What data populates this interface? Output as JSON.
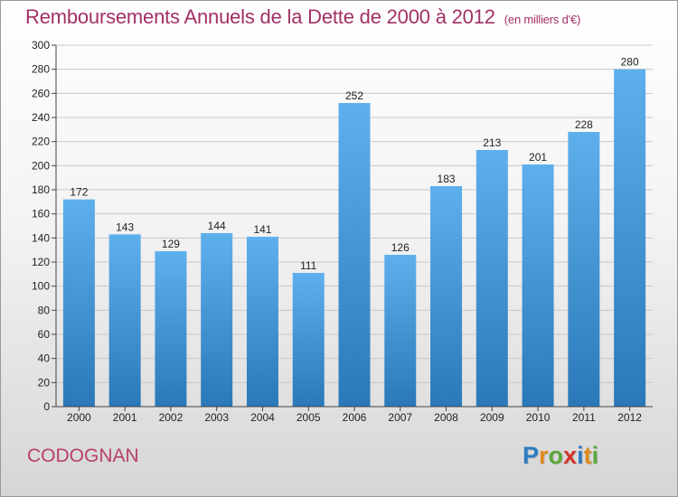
{
  "title": "Remboursements Annuels de la Dette de 2000 à 2012",
  "unit_note": "(en milliers d'€)",
  "commune": "CODOGNAN",
  "logo": {
    "letters": [
      "P",
      "r",
      "o",
      "x",
      "i",
      "t",
      "i"
    ],
    "colors": [
      "#2e7cc2",
      "#e08a1e",
      "#5aa83a",
      "#d4342a",
      "#2e7cc2",
      "#e08a1e",
      "#5aa83a"
    ]
  },
  "colors": {
    "bar_top": "#5eb0ec",
    "bar_bottom": "#2a78b8",
    "title": "#a23066"
  },
  "chart_data": {
    "type": "bar",
    "title": "Remboursements Annuels de la Dette de 2000 à 2012",
    "xlabel": "",
    "ylabel": "",
    "categories": [
      "2000",
      "2001",
      "2002",
      "2003",
      "2004",
      "2005",
      "2006",
      "2007",
      "2008",
      "2009",
      "2010",
      "2011",
      "2012"
    ],
    "values": [
      172,
      143,
      129,
      144,
      141,
      111,
      252,
      126,
      183,
      213,
      201,
      228,
      280
    ],
    "ylim": [
      0,
      300
    ],
    "ytick_step": 20,
    "grid": true
  }
}
